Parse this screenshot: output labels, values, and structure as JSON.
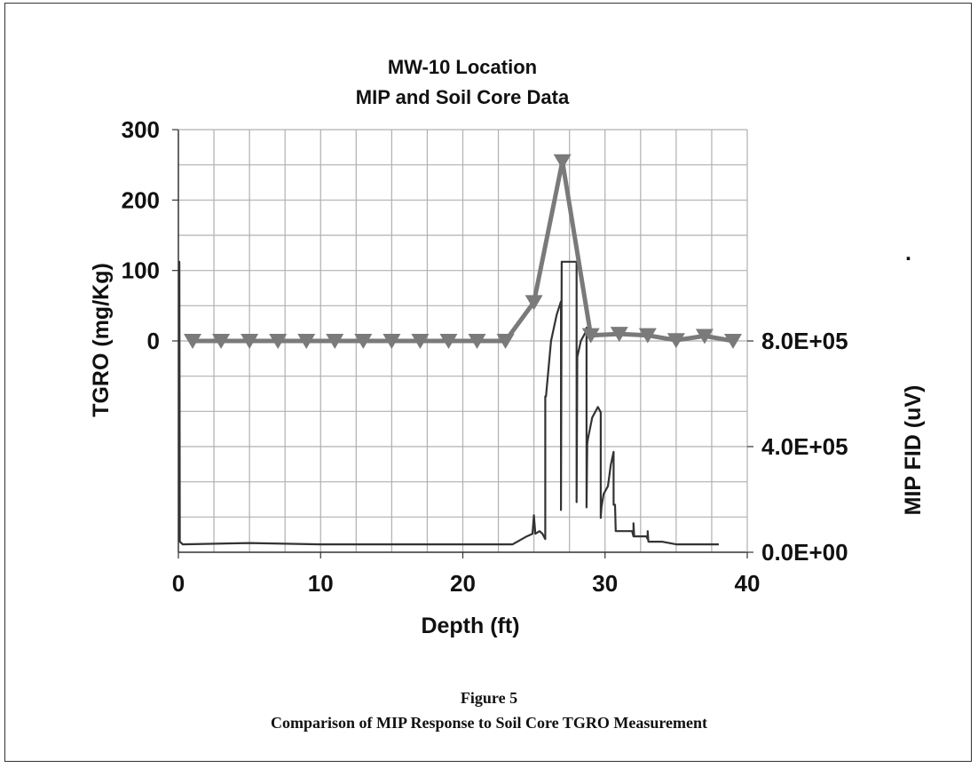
{
  "caption": {
    "figure": "Figure 5",
    "text": "Comparison of MIP Response to Soil Core TGRO Measurement"
  },
  "stray_mark": ".",
  "chart_data": {
    "type": "line",
    "title": [
      "MW-10 Location",
      "MIP and Soil Core Data"
    ],
    "xlabel": "Depth (ft)",
    "ylabel_left": "TGRO (mg/Kg)",
    "ylabel_right": "MIP FID (uV)",
    "xlim": [
      0,
      40
    ],
    "x_ticks": [
      0,
      10,
      20,
      30,
      40
    ],
    "left_axis": {
      "range": [
        -300,
        300
      ],
      "ticks": [
        0,
        100,
        200,
        300
      ],
      "tick_labels": [
        "0",
        "100",
        "200",
        "300"
      ]
    },
    "right_axis": {
      "range": [
        0,
        1600000
      ],
      "ticks": [
        0,
        400000,
        800000
      ],
      "tick_labels": [
        "0.0E+00",
        "4.0E+05",
        "8.0E+05"
      ]
    },
    "grid": true,
    "colors": {
      "tgro": "#7a7a7a",
      "mip": "#333333",
      "grid": "#b0b0b0"
    },
    "series": [
      {
        "axis": "left",
        "marker": "triangle-down",
        "x": [
          1,
          3,
          5,
          7,
          9,
          11,
          13,
          15,
          17,
          19,
          21,
          23,
          25,
          27,
          29,
          31,
          33,
          35,
          37,
          39
        ],
        "y": [
          0,
          0,
          0,
          0,
          0,
          0,
          0,
          0,
          0,
          0,
          0,
          0,
          55,
          255,
          8,
          10,
          8,
          1,
          7,
          0
        ]
      },
      {
        "axis": "right",
        "x": [
          0.05,
          0.07,
          0.1,
          0.3,
          5,
          10,
          15,
          20,
          23.5,
          24.5,
          24.9,
          25.0,
          25.1,
          25.4,
          25.6,
          25.8,
          25.8,
          25.85,
          26.2,
          26.6,
          26.9,
          26.9,
          26.95,
          27.0,
          27.0,
          28.0,
          28.0,
          28.05,
          28.3,
          28.6,
          28.7,
          28.7,
          28.75,
          28.8,
          29.1,
          29.5,
          29.7,
          29.7,
          29.75,
          29.9,
          30.2,
          30.4,
          30.6,
          30.6,
          30.7,
          30.75,
          31.3,
          31.9,
          32.0,
          32.0,
          32.05,
          32.9,
          33.0,
          33.0,
          33.05,
          34,
          35,
          37,
          38
        ],
        "y": [
          60000,
          1100000,
          40000,
          30000,
          35000,
          30000,
          30000,
          30000,
          30000,
          60000,
          70000,
          140000,
          70000,
          80000,
          70000,
          50000,
          590000,
          590000,
          800000,
          900000,
          950000,
          160000,
          1100000,
          1100000,
          1100000,
          1100000,
          190000,
          740000,
          800000,
          830000,
          850000,
          170000,
          410000,
          430000,
          510000,
          550000,
          530000,
          130000,
          170000,
          220000,
          250000,
          330000,
          380000,
          180000,
          180000,
          80000,
          80000,
          80000,
          60000,
          110000,
          60000,
          60000,
          50000,
          80000,
          40000,
          40000,
          30000,
          30000,
          30000
        ]
      }
    ]
  }
}
